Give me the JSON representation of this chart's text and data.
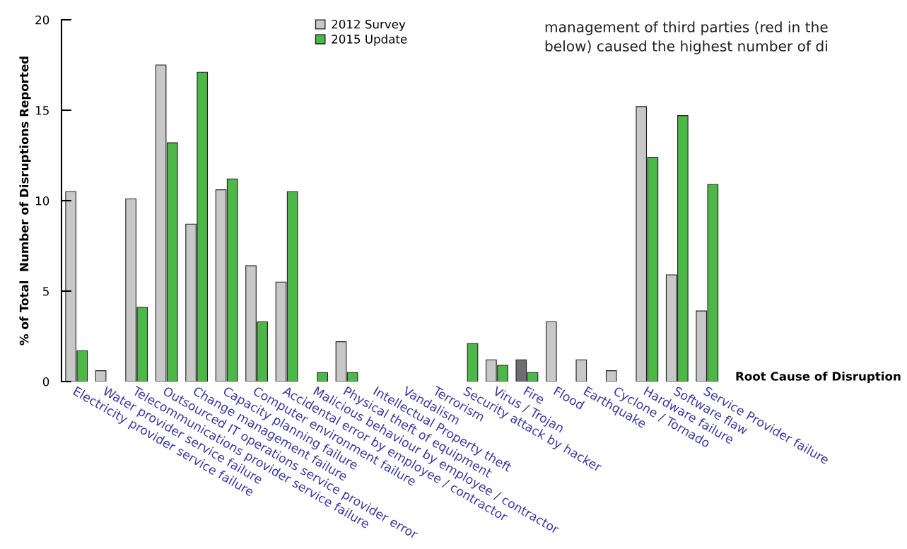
{
  "chart_data": {
    "type": "bar",
    "categories": [
      "Electricity provider service failure",
      "Water provider service failure",
      "Telecommunications provider service failure",
      "Outsourced IT operations service provider error",
      "Change management failure",
      "Capacity planning failure",
      "Computer environment failure",
      "Accidental error by employee / contractor",
      "Malicious behaviour by employee / contractor",
      "Physical theft of equipment",
      "Intellectual Property theft",
      "Vandalism",
      "Terrorism",
      "Security attack by hacker",
      "Virus / Trojan",
      "Fire",
      "Flood",
      "Earthquake",
      "Cyclone / Tornado",
      "Hardware failure",
      "Software flaw",
      "Service Provider failure"
    ],
    "series": [
      {
        "name": "2012 Survey",
        "color": "#c8c8c8",
        "colors": [
          "#c8c8c8",
          "#c8c8c8",
          "#c8c8c8",
          "#c8c8c8",
          "#c8c8c8",
          "#c8c8c8",
          "#c8c8c8",
          "#c8c8c8",
          "#c8c8c8",
          "#c8c8c8",
          "#c8c8c8",
          "#c8c8c8",
          "#c8c8c8",
          "#c8c8c8",
          "#c8c8c8",
          "#6d6e71",
          "#c8c8c8",
          "#c8c8c8",
          "#c8c8c8",
          "#c8c8c8",
          "#c8c8c8",
          "#c8c8c8"
        ],
        "values": [
          10.5,
          0.6,
          10.1,
          17.5,
          8.7,
          10.6,
          6.4,
          5.5,
          null,
          2.2,
          null,
          null,
          null,
          null,
          1.2,
          1.2,
          3.3,
          1.2,
          0.6,
          15.2,
          5.9,
          3.9
        ]
      },
      {
        "name": "2015 Update",
        "color": "#4cb847",
        "values": [
          1.7,
          null,
          4.1,
          13.2,
          17.1,
          11.2,
          3.3,
          10.5,
          0.5,
          0.5,
          null,
          null,
          null,
          2.1,
          0.9,
          0.5,
          null,
          null,
          null,
          12.4,
          14.7,
          10.9
        ]
      }
    ],
    "ylim": [
      0,
      20
    ],
    "yticks": [
      0,
      5,
      10,
      15,
      20
    ],
    "ylabel": "% of Total  Number of Disruptions Reported",
    "xlabel": "Root Cause of Disruption",
    "legend": "top",
    "grid": false,
    "annotations": [
      "management of third parties (red in the",
      "below) caused the highest number of di"
    ]
  }
}
